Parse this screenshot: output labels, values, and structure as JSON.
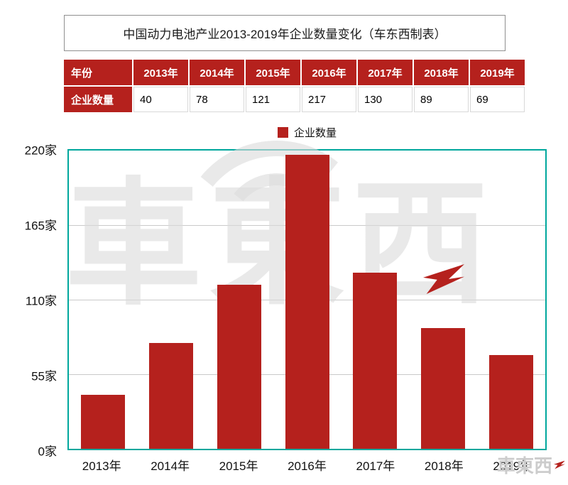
{
  "title": "中国动力电池产业2013-2019年企业数量变化（车东西制表）",
  "table": {
    "header_label": "年份",
    "row_label": "企业数量",
    "years": [
      "2013年",
      "2014年",
      "2015年",
      "2016年",
      "2017年",
      "2018年",
      "2019年"
    ],
    "values": [
      "40",
      "78",
      "121",
      "217",
      "130",
      "89",
      "69"
    ]
  },
  "legend": {
    "label": "企业数量"
  },
  "chart_data": {
    "type": "bar",
    "title": "中国动力电池产业2013-2019年企业数量变化（车东西制表）",
    "series_name": "企业数量",
    "categories": [
      "2013年",
      "2014年",
      "2015年",
      "2016年",
      "2017年",
      "2018年",
      "2019年"
    ],
    "values": [
      40,
      78,
      121,
      217,
      130,
      89,
      69
    ],
    "ylim": [
      0,
      220
    ],
    "y_ticks": [
      {
        "label": "220家",
        "value": 220
      },
      {
        "label": "165家",
        "value": 165
      },
      {
        "label": "110家",
        "value": 110
      },
      {
        "label": "55家",
        "value": 55
      },
      {
        "label": "0家",
        "value": 0
      }
    ],
    "grid": true,
    "legend_position": "top",
    "colors": {
      "bar": "#b5211d",
      "plot_border": "#00a79d",
      "grid_line": "#c9c9c9"
    }
  },
  "watermark": {
    "big_text": "車東西",
    "small_text": "車東西"
  }
}
